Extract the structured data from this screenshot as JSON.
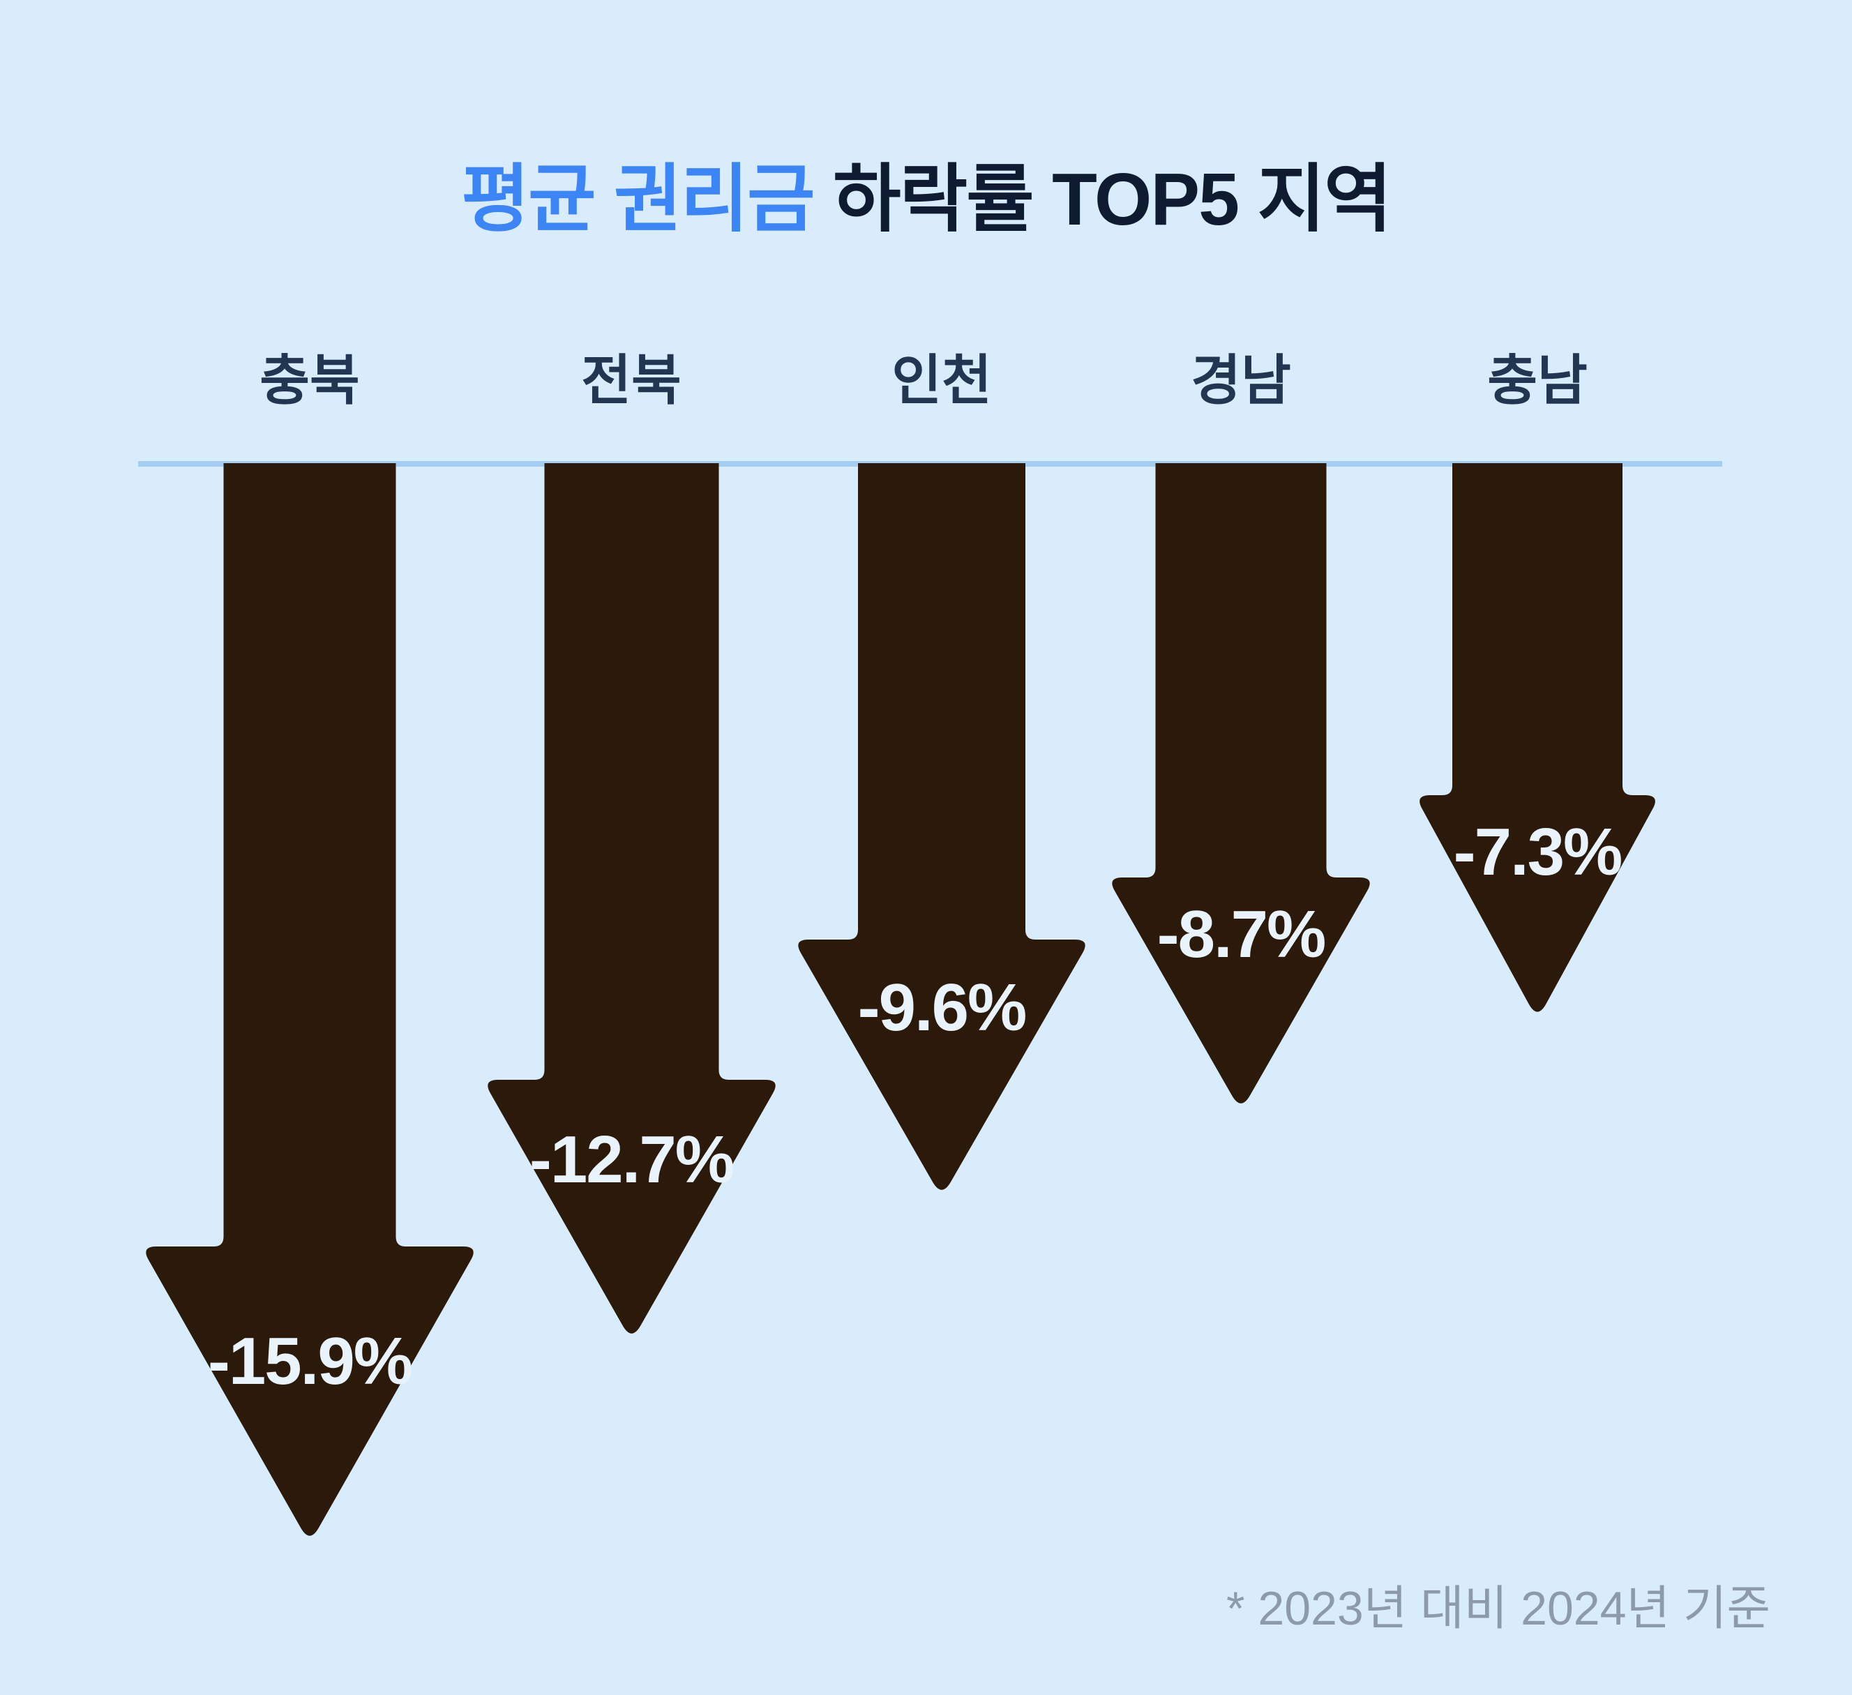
{
  "title": {
    "highlight": "평균 권리금",
    "rest": "하락률 TOP5 지역"
  },
  "footnote": "* 2023년 대비 2024년 기준",
  "colors": {
    "background": "#D9ECFC",
    "baseline": "#A4CDF4",
    "arrow": "#2B1A0A",
    "value_text": "#E9F3FC",
    "title_highlight": "#3B85F6",
    "title_text": "#0E1B30",
    "category_text": "#223551",
    "footnote_text": "#8D9AAA"
  },
  "chart_data": {
    "type": "bar",
    "variant": "downward-arrow-infographic",
    "title": "평균 권리금 하락률 TOP5 지역",
    "categories": [
      "충북",
      "전북",
      "인천",
      "경남",
      "충남"
    ],
    "values": [
      -15.9,
      -12.7,
      -9.6,
      -8.7,
      -7.3
    ],
    "value_labels": [
      "-15.9%",
      "-12.7%",
      "-9.6%",
      "-8.7%",
      "-7.3%"
    ],
    "unit": "%",
    "footnote": "* 2023년 대비 2024년 기준",
    "legend": "none",
    "grid": "off",
    "axis": "single top baseline, arrows extend downward proportional to decline"
  }
}
